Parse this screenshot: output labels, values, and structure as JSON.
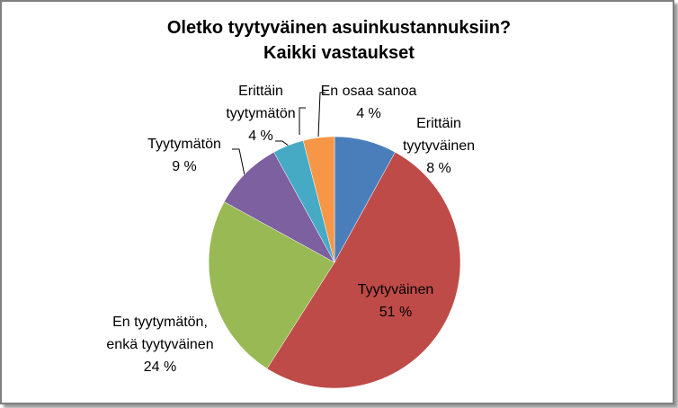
{
  "chart_data": {
    "type": "pie",
    "title": "Oletko tyytyväinen asuinkustannuksiin?",
    "subtitle": "Kaikki vastaukset",
    "categories": [
      "Erittäin tyytyväinen",
      "Tyytyväinen",
      "En tyytymätön, enkä tyytyväinen",
      "Tyytymätön",
      "Erittäin tyytymätön",
      "En osaa sanoa"
    ],
    "values": [
      8,
      51,
      24,
      9,
      4,
      4
    ],
    "value_labels": [
      "8 %",
      "51 %",
      "24 %",
      "9 %",
      "4 %",
      "4 %"
    ],
    "colors": [
      "#4a7ebb",
      "#be4b48",
      "#98b954",
      "#7d60a0",
      "#46aac5",
      "#f79646"
    ]
  }
}
